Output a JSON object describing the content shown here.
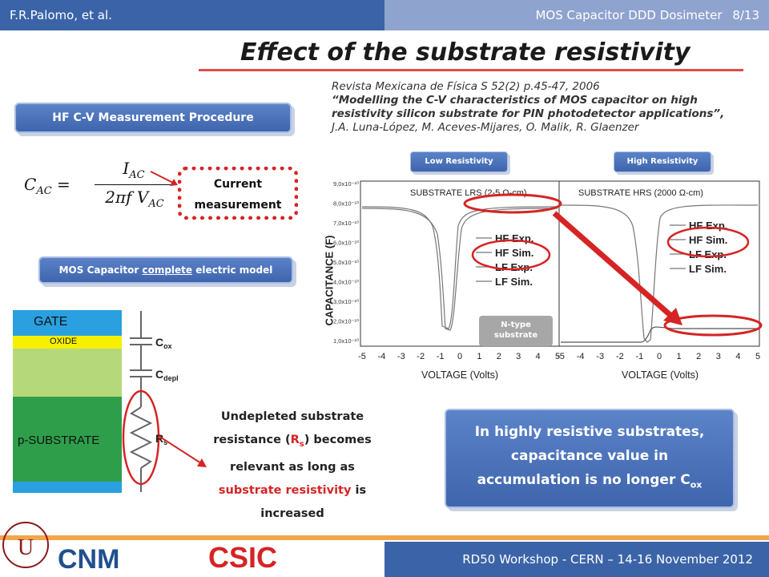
{
  "header": {
    "author": "F.R.Palomo, et al.",
    "deck_title": "MOS Capacitor DDD Dosimeter",
    "page": "8/13"
  },
  "slide_title": "Effect of the substrate resistivity",
  "reference": {
    "journal": "Revista Mexicana de Física S 52(2) p.45-47, 2006",
    "paper_title": "“Modelling the C-V characteristics of MOS capacitor on high resistivity silicon substrate for PIN photodetector applications”,",
    "authors": "J.A. Luna-López, M. Aceves-Mijares, O. Malik, R. Glaenzer"
  },
  "hf_cv_label": "HF C-V Measurement Procedure",
  "formula": {
    "lhs": "C",
    "lhs_sub": "AC",
    "num": "I",
    "num_sub": "AC",
    "den_pre": "2πf V",
    "den_sub": "AC"
  },
  "current_measurement": {
    "line1": "Current",
    "line2": "measurement"
  },
  "mos_model": {
    "prefix": "MOS Capacitor ",
    "underlined": "complete",
    "suffix": " electric model"
  },
  "badges": {
    "low": "Low Resistivity",
    "high": "High Resistivity"
  },
  "ntype": {
    "line1": "N-type",
    "line2": "substrate"
  },
  "chart": {
    "ylabel": "CAPACITANCE  (F)",
    "xlabel": "VOLTAGE  (Volts)",
    "left_title": "SUBSTRATE  LRS  (2-5  Ω-cm)",
    "right_title": "SUBSTRATE  HRS  (2000 Ω-cm)",
    "yticks": [
      "9,0x10⁻¹⁰",
      "8,0x10⁻¹⁰",
      "7,0x10⁻¹⁰",
      "6,0x10⁻¹⁰",
      "5,0x10⁻¹⁰",
      "4,0x10⁻¹⁰",
      "3,0x10⁻¹⁰",
      "2,0x10⁻¹⁰",
      "1,0x10⁻¹⁰"
    ],
    "xticks_left": [
      "-5",
      "-4",
      "-3",
      "-2",
      "-1",
      "0",
      "1",
      "2",
      "3",
      "4",
      "5"
    ],
    "xticks_right": [
      "-5",
      "-4",
      "-3",
      "-2",
      "-1",
      "0",
      "1",
      "2",
      "3",
      "4",
      "5"
    ],
    "legend": [
      "HF Exp.",
      "HF Sim.",
      "LF Exp.",
      "LF Sim."
    ]
  },
  "stack": {
    "gate": "GATE",
    "oxide": "OXIDE",
    "substrate": "p-SUBSTRATE"
  },
  "circuit": {
    "cox": "C",
    "cox_sub": "ox",
    "cdepl": "C",
    "cdepl_sub": "depl",
    "rs": "R",
    "rs_sub": "s"
  },
  "undepleted": {
    "l1": "Undepleted substrate",
    "l2a": "resistance  (",
    "l2r": "R",
    "l2rs": "s",
    "l2b": ") becomes",
    "l3": "relevant as long as",
    "l4r": "substrate resistivity",
    "l4b": " is",
    "l5": "increased"
  },
  "conclusion": {
    "l1": "In highly resistive substrates,",
    "l2": "capacitance value in",
    "l3": "accumulation is no longer C",
    "l3sub": "ox"
  },
  "footer": "RD50 Workshop - CERN – 14-16 November  2012",
  "logos": {
    "csic": "CSIC",
    "cnm": "CNM"
  },
  "colors": {
    "header_blue": "#3b64a8",
    "accent_red": "#d62424",
    "footer_orange": "#f0a64a",
    "gate_blue": "#2aa0e0",
    "oxide_yellow": "#f6f000",
    "depl_green": "#b5d97a",
    "substrate_green": "#2e9e4a"
  }
}
